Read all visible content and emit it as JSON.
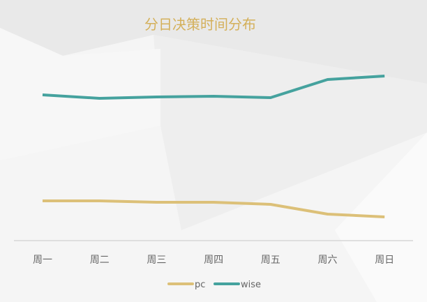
{
  "chart_data": {
    "type": "line",
    "title": "分日决策时间分布",
    "categories": [
      "周一",
      "周二",
      "周三",
      "周四",
      "周五",
      "周六",
      "周日"
    ],
    "series": [
      {
        "name": "pc",
        "color": "#dcc078",
        "values": [
          57,
          57,
          55,
          55,
          52,
          38,
          34
        ]
      },
      {
        "name": "wise",
        "color": "#45a29e",
        "values": [
          209,
          204,
          206,
          207,
          205,
          231,
          236
        ]
      }
    ],
    "ylim": [
      0,
      280
    ],
    "grid": false,
    "legend_position": "bottom"
  }
}
